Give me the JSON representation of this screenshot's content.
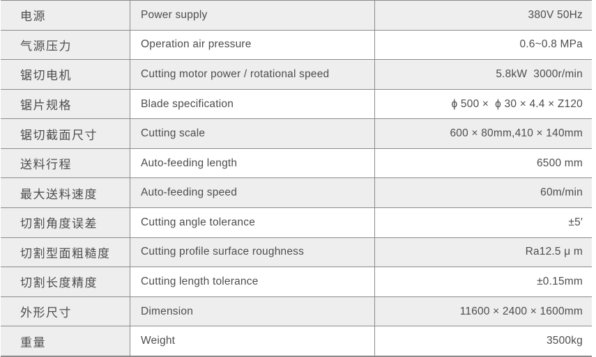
{
  "meta": {
    "colors": {
      "row_shade": "#eeeeee",
      "grid_line": "#8a8a8a",
      "text": "#4d4d4d"
    }
  },
  "table": {
    "rows": [
      {
        "cn": "电源",
        "en": "Power supply",
        "value": "380V 50Hz"
      },
      {
        "cn": "气源压力",
        "en": "Operation air pressure",
        "value": "0.6~0.8 MPa"
      },
      {
        "cn": "锯切电机",
        "en": "Cutting motor power / rotational speed",
        "value": "5.8kW  3000r/min"
      },
      {
        "cn": "锯片规格",
        "en": "Blade specification",
        "value": "ϕ 500 ×  ϕ 30 × 4.4 × Z120"
      },
      {
        "cn": "锯切截面尺寸",
        "en": "Cutting scale",
        "value": "600 × 80mm,410 × 140mm"
      },
      {
        "cn": "送料行程",
        "en": "Auto-feeding length",
        "value": "6500 mm"
      },
      {
        "cn": "最大送料速度",
        "en": "Auto-feeding speed",
        "value": "60m/min"
      },
      {
        "cn": "切割角度误差",
        "en": "Cutting angle tolerance",
        "value": "±5′"
      },
      {
        "cn": "切割型面粗糙度",
        "en": "Cutting profile surface roughness",
        "value": "Ra12.5 μ m"
      },
      {
        "cn": "切割长度精度",
        "en": "Cutting length tolerance",
        "value": "±0.15mm"
      },
      {
        "cn": "外形尺寸",
        "en": "Dimension",
        "value": "11600 × 2400 × 1600mm"
      },
      {
        "cn": "重量",
        "en": "Weight",
        "value": "3500kg"
      }
    ]
  }
}
